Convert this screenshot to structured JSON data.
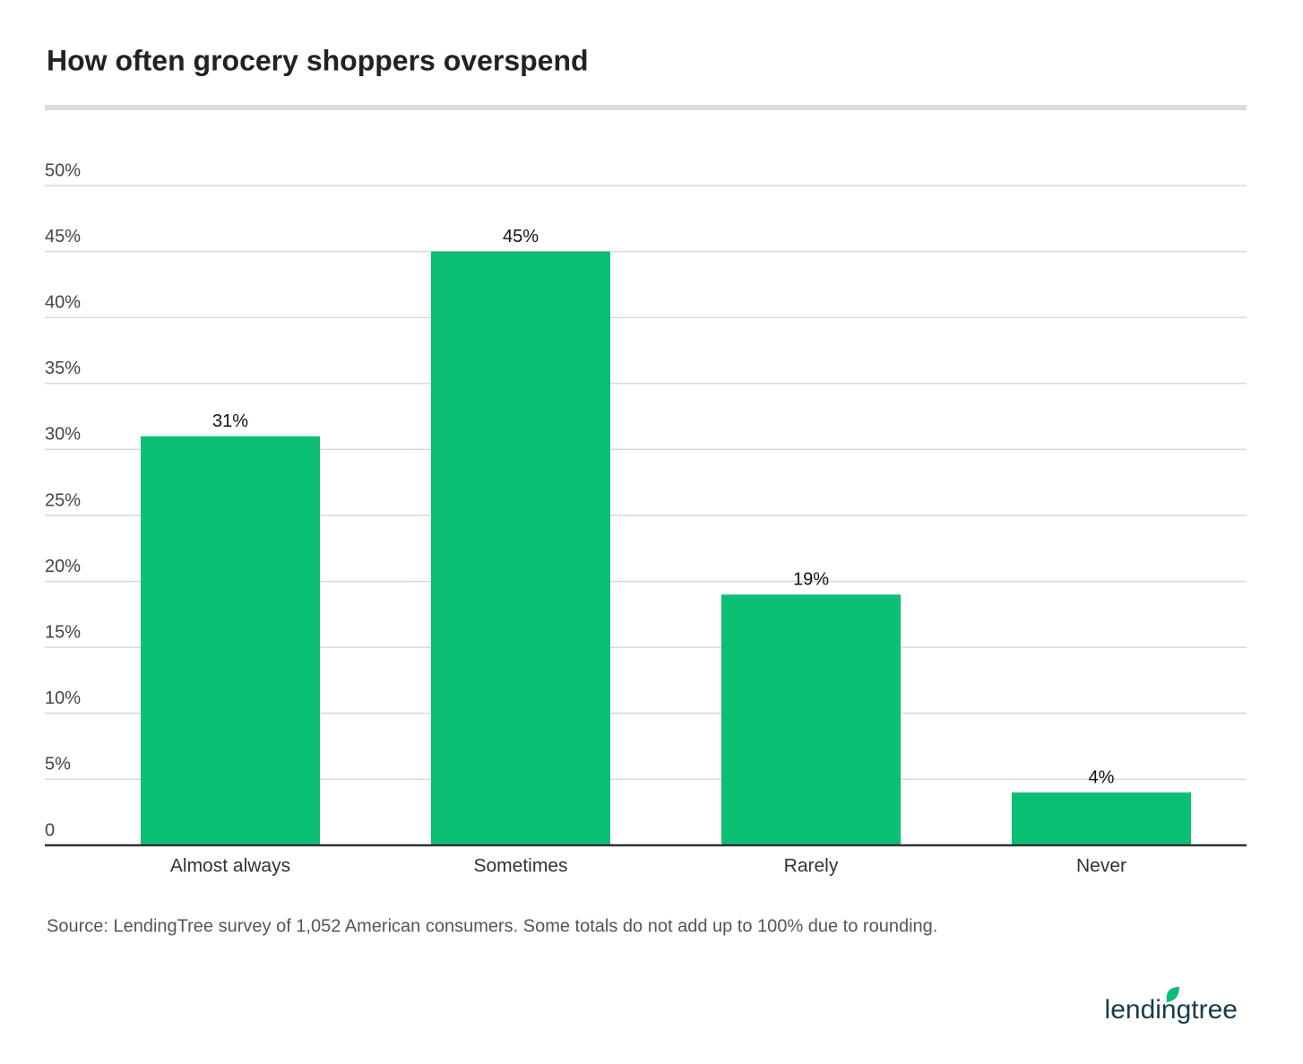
{
  "chart_data": {
    "type": "bar",
    "title": "How often grocery shoppers overspend",
    "categories": [
      "Almost always",
      "Sometimes",
      "Rarely",
      "Never"
    ],
    "values": [
      31,
      45,
      19,
      4
    ],
    "value_labels": [
      "31%",
      "45%",
      "19%",
      "4%"
    ],
    "color": "#0bbf74",
    "ylim": [
      0,
      50
    ],
    "yticks": [
      0,
      {
        "value": 5,
        "label": "5%"
      },
      {
        "value": 10,
        "label": "10%"
      },
      {
        "value": 15,
        "label": "15%"
      },
      {
        "value": 20,
        "label": "20%"
      },
      {
        "value": 25,
        "label": "25%"
      },
      {
        "value": 30,
        "label": "30%"
      },
      {
        "value": 35,
        "label": "35%"
      },
      {
        "value": 40,
        "label": "40%"
      },
      {
        "value": 45,
        "label": "45%"
      },
      {
        "value": 50,
        "label": "50%"
      }
    ],
    "grid": true,
    "source": "Source: LendingTree survey of 1,052 American consumers. Some totals do not add up to 100% due to rounding.",
    "logo": "lendingtree"
  }
}
